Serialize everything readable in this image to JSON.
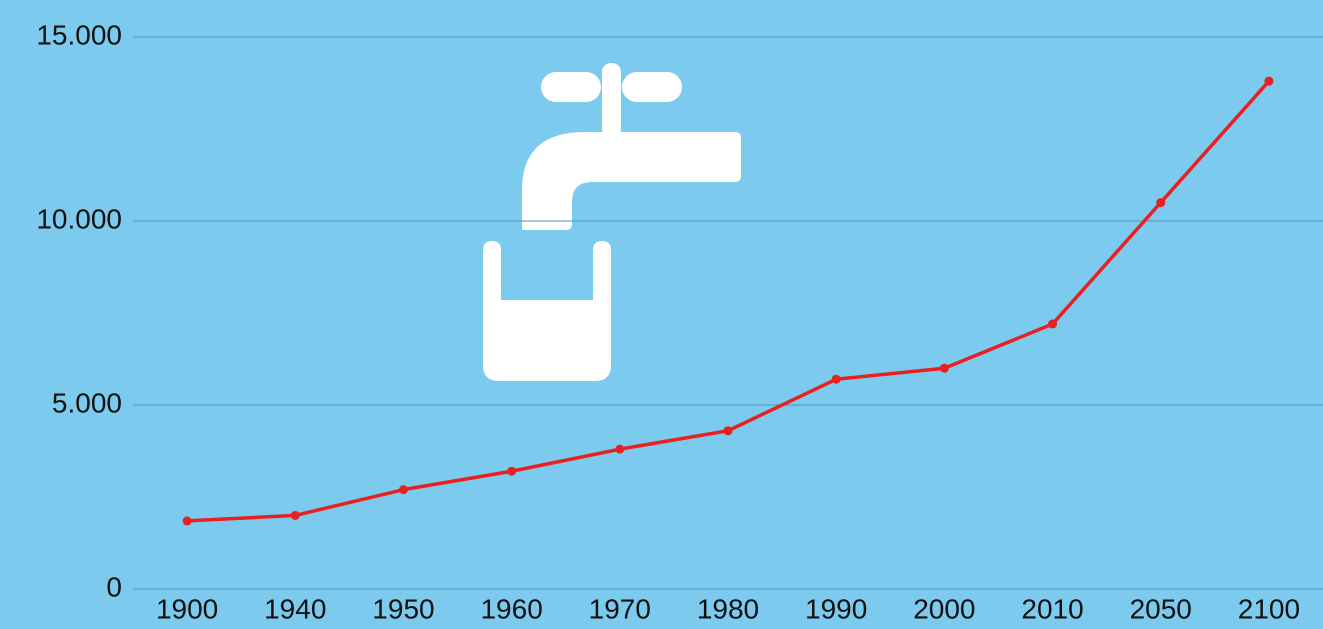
{
  "chart_data": {
    "type": "line",
    "categories": [
      "1900",
      "1940",
      "1950",
      "1960",
      "1970",
      "1980",
      "1990",
      "2000",
      "2010",
      "2050",
      "2100"
    ],
    "values": [
      1850,
      2000,
      2700,
      3200,
      3800,
      4300,
      5700,
      6000,
      7200,
      10500,
      13800
    ],
    "color": "#e8201f",
    "ylim": [
      0,
      15000
    ],
    "yticks": [
      0,
      {
        "value": 5000,
        "label": "5.000"
      },
      {
        "value": 10000,
        "label": "10.000"
      },
      {
        "value": 15000,
        "label": "15.000"
      }
    ],
    "grid": true
  }
}
